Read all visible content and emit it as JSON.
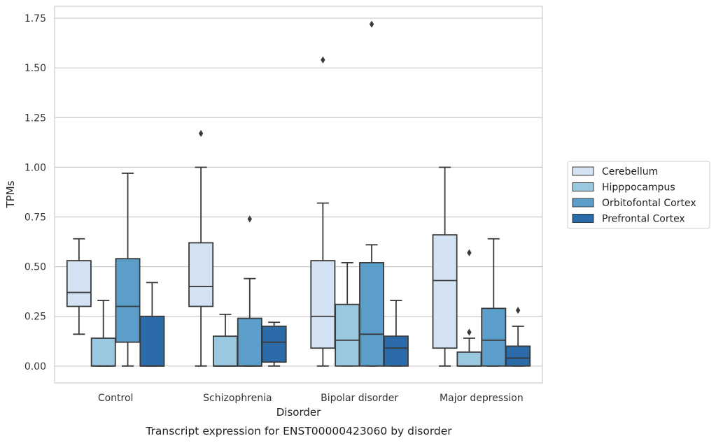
{
  "chart_data": {
    "type": "box",
    "xlabel": "Disorder",
    "ylabel": "TPMs",
    "caption": "Transcript expression for ENST00000423060 by disorder",
    "categories": [
      "Control",
      "Schizophrenia",
      "Bipolar disorder",
      "Major depression"
    ],
    "ylim": [
      -0.085,
      1.81
    ],
    "yticks": [
      "0.00",
      "0.25",
      "0.50",
      "0.75",
      "1.00",
      "1.25",
      "1.50",
      "1.75"
    ],
    "grid": "horizontal",
    "legend_position": "right",
    "series": [
      {
        "name": "Cerebellum",
        "color": "#d3e3f3",
        "boxes": [
          {
            "whislo": 0.16,
            "q1": 0.3,
            "med": 0.37,
            "q3": 0.53,
            "whishi": 0.64,
            "fliers": []
          },
          {
            "whislo": 0.0,
            "q1": 0.3,
            "med": 0.4,
            "q3": 0.62,
            "whishi": 1.0,
            "fliers": [
              1.17
            ]
          },
          {
            "whislo": 0.0,
            "q1": 0.09,
            "med": 0.25,
            "q3": 0.53,
            "whishi": 0.82,
            "fliers": [
              1.54
            ]
          },
          {
            "whislo": 0.0,
            "q1": 0.09,
            "med": 0.43,
            "q3": 0.66,
            "whishi": 1.0,
            "fliers": []
          }
        ]
      },
      {
        "name": "Hipppocampus",
        "color": "#9ac8e0",
        "boxes": [
          {
            "whislo": 0.0,
            "q1": 0.0,
            "med": 0.0,
            "q3": 0.14,
            "whishi": 0.33,
            "fliers": []
          },
          {
            "whislo": 0.0,
            "q1": 0.0,
            "med": 0.0,
            "q3": 0.15,
            "whishi": 0.26,
            "fliers": []
          },
          {
            "whislo": 0.0,
            "q1": 0.0,
            "med": 0.13,
            "q3": 0.31,
            "whishi": 0.52,
            "fliers": []
          },
          {
            "whislo": 0.0,
            "q1": 0.0,
            "med": 0.0,
            "q3": 0.07,
            "whishi": 0.14,
            "fliers": [
              0.17,
              0.57
            ]
          }
        ]
      },
      {
        "name": "Orbitofontal Cortex",
        "color": "#5a9ec9",
        "boxes": [
          {
            "whislo": 0.0,
            "q1": 0.12,
            "med": 0.3,
            "q3": 0.54,
            "whishi": 0.97,
            "fliers": []
          },
          {
            "whislo": 0.0,
            "q1": 0.0,
            "med": 0.0,
            "q3": 0.24,
            "whishi": 0.44,
            "fliers": [
              0.74
            ]
          },
          {
            "whislo": 0.0,
            "q1": 0.0,
            "med": 0.16,
            "q3": 0.52,
            "whishi": 0.61,
            "fliers": [
              1.72
            ]
          },
          {
            "whislo": 0.0,
            "q1": 0.0,
            "med": 0.13,
            "q3": 0.29,
            "whishi": 0.64,
            "fliers": []
          }
        ]
      },
      {
        "name": "Prefrontal Cortex",
        "color": "#2b6ba9",
        "boxes": [
          {
            "whislo": 0.0,
            "q1": 0.0,
            "med": 0.0,
            "q3": 0.25,
            "whishi": 0.42,
            "fliers": []
          },
          {
            "whislo": 0.0,
            "q1": 0.02,
            "med": 0.12,
            "q3": 0.2,
            "whishi": 0.22,
            "fliers": []
          },
          {
            "whislo": 0.0,
            "q1": 0.0,
            "med": 0.09,
            "q3": 0.15,
            "whishi": 0.33,
            "fliers": []
          },
          {
            "whislo": 0.0,
            "q1": 0.0,
            "med": 0.04,
            "q3": 0.1,
            "whishi": 0.2,
            "fliers": [
              0.28
            ]
          }
        ]
      }
    ]
  }
}
